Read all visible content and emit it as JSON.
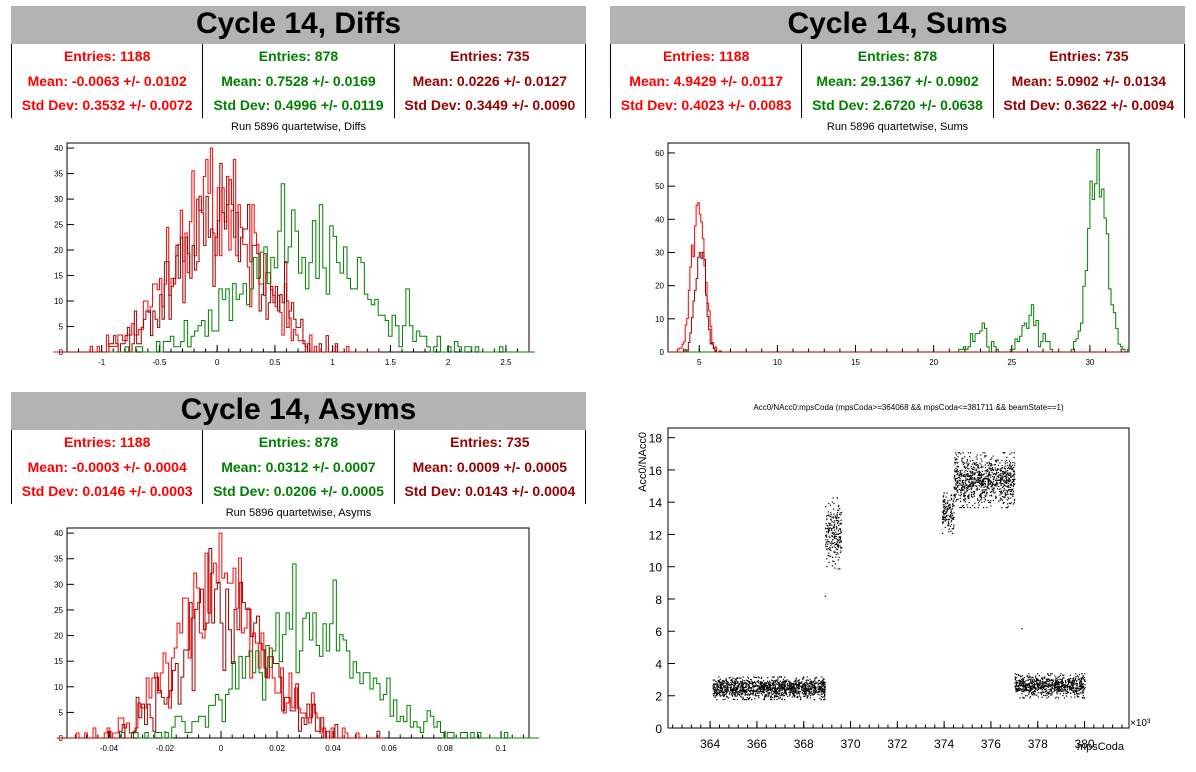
{
  "panels": {
    "diffs": {
      "title": "Cycle 14, Diffs",
      "subtitle": "Run 5896 quartetwise, Diffs",
      "stats": [
        {
          "entries": "Entries: 1188",
          "mean": "Mean: -0.0063 +/- 0.0102",
          "std": "Std Dev: 0.3532 +/- 0.0072",
          "color": "#ff0000"
        },
        {
          "entries": "Entries: 878",
          "mean": "Mean: 0.7528 +/- 0.0169",
          "std": "Std Dev: 0.4996 +/- 0.0119",
          "color": "#008000"
        },
        {
          "entries": "Entries: 735",
          "mean": "Mean: 0.0226 +/- 0.0127",
          "std": "Std Dev: 0.3449 +/- 0.0090",
          "color": "#990000"
        }
      ]
    },
    "sums": {
      "title": "Cycle 14, Sums",
      "subtitle": "Run 5896 quartetwise, Sums",
      "stats": [
        {
          "entries": "Entries: 1188",
          "mean": "Mean: 4.9429 +/- 0.0117",
          "std": "Std Dev: 0.4023 +/- 0.0083",
          "color": "#ff0000"
        },
        {
          "entries": "Entries: 878",
          "mean": "Mean: 29.1367 +/- 0.0902",
          "std": "Std Dev: 2.6720 +/- 0.0638",
          "color": "#008000"
        },
        {
          "entries": "Entries: 735",
          "mean": "Mean: 5.0902 +/- 0.0134",
          "std": "Std Dev: 0.3622 +/- 0.0094",
          "color": "#990000"
        }
      ]
    },
    "asyms": {
      "title": "Cycle 14, Asyms",
      "subtitle": "Run 5896 quartetwise, Asyms",
      "stats": [
        {
          "entries": "Entries: 1188",
          "mean": "Mean: -0.0003 +/- 0.0004",
          "std": "Std Dev: 0.0146 +/- 0.0003",
          "color": "#ff0000"
        },
        {
          "entries": "Entries: 878",
          "mean": "Mean: 0.0312 +/- 0.0007",
          "std": "Std Dev: 0.0206 +/- 0.0005",
          "color": "#008000"
        },
        {
          "entries": "Entries: 735",
          "mean": "Mean: 0.0009 +/- 0.0005",
          "std": "Std Dev: 0.0143 +/- 0.0004",
          "color": "#990000"
        }
      ]
    },
    "scatter": {
      "title": "Acc0/NAcc0:mpsCoda (mpsCoda>=364068 && mpsCoda<=381711 && beamState==1)"
    }
  },
  "chart_data": [
    {
      "type": "bar",
      "name": "diffs",
      "xlim": [
        -1.3,
        2.7
      ],
      "ylim": [
        0,
        41
      ],
      "xticks": [
        -1,
        -0.5,
        0,
        0.5,
        1,
        1.5,
        2,
        2.5
      ],
      "xtick_labels": [
        "-1",
        "-0.5",
        "0",
        "0.5",
        "1",
        "1.5",
        "2",
        "2.5"
      ],
      "yticks": [
        0,
        5,
        10,
        15,
        20,
        25,
        30,
        35,
        40
      ],
      "series": [
        {
          "color": "#ff0000",
          "mean": -0.0063,
          "std": 0.3532,
          "entries": 1188,
          "peak": 40,
          "bin": 0.02
        },
        {
          "color": "#008000",
          "mean": 0.7528,
          "std": 0.4996,
          "entries": 878,
          "peak": 33,
          "bin": 0.03
        },
        {
          "color": "#990000",
          "mean": 0.0226,
          "std": 0.3449,
          "entries": 735,
          "peak": 37,
          "bin": 0.02
        }
      ]
    },
    {
      "type": "bar",
      "name": "sums",
      "xlim": [
        3.0,
        32.5
      ],
      "ylim": [
        0,
        63
      ],
      "xticks": [
        5,
        10,
        15,
        20,
        25,
        30
      ],
      "xtick_labels": [
        "5",
        "10",
        "15",
        "20",
        "25",
        "30"
      ],
      "yticks": [
        0,
        10,
        20,
        30,
        40,
        50,
        60
      ],
      "series": [
        {
          "color": "#ff0000",
          "mean": 4.94,
          "std": 0.4,
          "entries": 1188,
          "peak": 45,
          "bin": 0.1
        },
        {
          "color": "#008000",
          "mean": 29.14,
          "std": 2.67,
          "entries": 878,
          "peak": 61,
          "bin": 0.15
        },
        {
          "color": "#990000",
          "mean": 5.09,
          "std": 0.36,
          "entries": 735,
          "peak": 30,
          "bin": 0.1
        }
      ]
    },
    {
      "type": "bar",
      "name": "asyms",
      "xlim": [
        -0.055,
        0.11
      ],
      "ylim": [
        0,
        41
      ],
      "xticks": [
        -0.04,
        -0.02,
        0,
        0.02,
        0.04,
        0.06,
        0.08,
        0.1
      ],
      "xtick_labels": [
        "-0.04",
        "-0.02",
        "0",
        "0.02",
        "0.04",
        "0.06",
        "0.08",
        "0.1"
      ],
      "yticks": [
        0,
        5,
        10,
        15,
        20,
        25,
        30,
        35,
        40
      ],
      "series": [
        {
          "color": "#ff0000",
          "mean": -0.0003,
          "std": 0.0146,
          "entries": 1188,
          "peak": 40,
          "bin": 0.001
        },
        {
          "color": "#008000",
          "mean": 0.0312,
          "std": 0.0206,
          "entries": 878,
          "peak": 34,
          "bin": 0.0012
        },
        {
          "color": "#990000",
          "mean": 0.0009,
          "std": 0.0143,
          "entries": 735,
          "peak": 37,
          "bin": 0.001
        }
      ]
    },
    {
      "type": "scatter",
      "name": "acc0-vs-mpscoda",
      "title": "Acc0/NAcc0:mpsCoda (mpsCoda>=364068 && mpsCoda<=381711 && beamState==1)",
      "xlabel": "mpsCoda",
      "ylabel": "Acc0/NAcc0",
      "x_multiplier": "×10³",
      "xlim": [
        362.2,
        381.9
      ],
      "ylim": [
        0,
        18.6
      ],
      "xticks": [
        364,
        366,
        368,
        370,
        372,
        374,
        376,
        378,
        380
      ],
      "xtick_labels": [
        "364",
        "366",
        "368",
        "370",
        "372",
        "374",
        "376",
        "378",
        "380"
      ],
      "yticks": [
        0,
        2,
        4,
        6,
        8,
        10,
        12,
        14,
        16,
        18
      ],
      "clusters": [
        {
          "x": [
            364.1,
            368.9
          ],
          "y": [
            1.8,
            3.2
          ],
          "n": 1400
        },
        {
          "x": [
            368.9,
            369.6
          ],
          "y": [
            9.9,
            14.3
          ],
          "n": 220
        },
        {
          "x": [
            373.9,
            374.4
          ],
          "y": [
            12.1,
            14.6
          ],
          "n": 140
        },
        {
          "x": [
            374.4,
            377.0
          ],
          "y": [
            13.7,
            17.1
          ],
          "n": 900
        },
        {
          "x": [
            377.0,
            380.0
          ],
          "y": [
            1.9,
            3.4
          ],
          "n": 800
        }
      ]
    }
  ]
}
